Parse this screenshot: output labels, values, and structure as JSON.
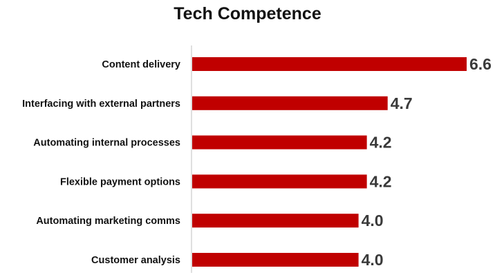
{
  "chart_data": {
    "type": "bar",
    "orientation": "horizontal",
    "title": "Tech Competence",
    "categories": [
      "Content delivery",
      "Interfacing with external partners",
      "Automating internal processes",
      "Flexible payment options",
      "Automating marketing comms",
      "Customer analysis"
    ],
    "values": [
      6.6,
      4.7,
      4.2,
      4.2,
      4.0,
      4.0
    ],
    "value_labels": [
      "6.6",
      "4.7",
      "4.2",
      "4.2",
      "4.0",
      "4.0"
    ],
    "xlabel": "",
    "ylabel": "",
    "xlim": [
      0,
      6.6
    ],
    "grid": false,
    "legend": "none",
    "bar_color": "#c00000"
  }
}
